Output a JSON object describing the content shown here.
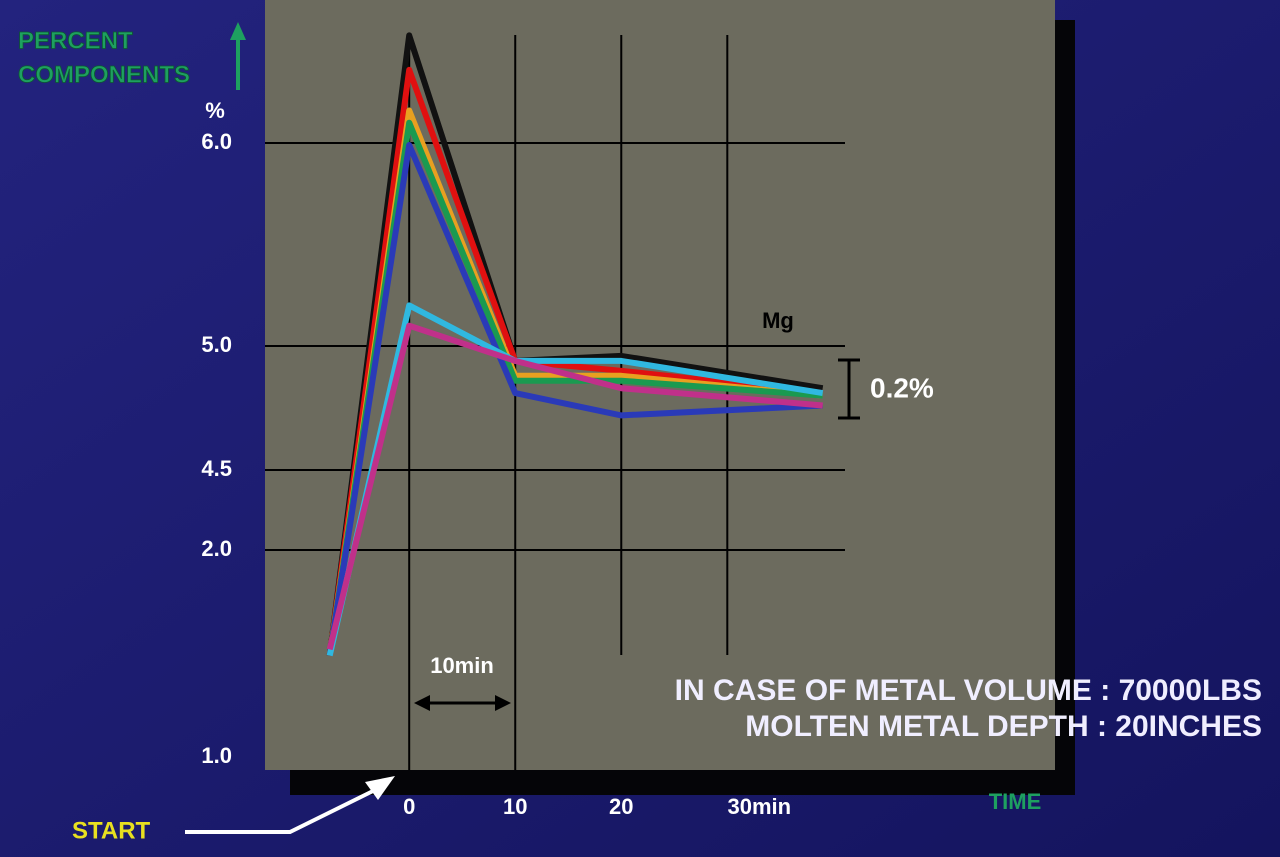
{
  "chart_data": {
    "type": "line",
    "ylabel_lines": [
      "PERCENT",
      "COMPONENTS"
    ],
    "y_unit": "%",
    "xlabel": "TIME",
    "x": [
      -7.5,
      0,
      10,
      20,
      39
    ],
    "xlim": [
      -13.6,
      41.1
    ],
    "xticks": [
      0,
      10,
      20,
      {
        "value": 30,
        "label": "30min"
      }
    ],
    "ylim": [
      1.0,
      6.7
    ],
    "yticks": [
      {
        "value": 1.0,
        "label": "1.0"
      },
      {
        "value": 2.0,
        "label": "2.0"
      },
      4.5,
      {
        "value": 5.0,
        "label": "5.0"
      },
      {
        "value": 6.0,
        "label": "6.0"
      }
    ],
    "grid": true,
    "series": [
      {
        "color": "#111111",
        "values": [
          1.49,
          6.53,
          4.94,
          4.96,
          4.83
        ]
      },
      {
        "color": "#e01010",
        "values": [
          1.49,
          6.36,
          4.94,
          4.9,
          4.81
        ]
      },
      {
        "color": "#e8a020",
        "values": [
          1.49,
          6.16,
          4.88,
          4.88,
          4.8
        ]
      },
      {
        "color": "#1a9a50",
        "values": [
          1.49,
          6.1,
          4.86,
          4.86,
          4.8
        ]
      },
      {
        "color": "#2a3ab8",
        "values": [
          1.49,
          5.99,
          4.81,
          4.72,
          4.76
        ]
      },
      {
        "color": "#30b8e0",
        "values": [
          1.49,
          5.2,
          4.94,
          4.94,
          4.81
        ]
      },
      {
        "color": "#c0308a",
        "values": [
          1.52,
          5.1,
          4.94,
          4.83,
          4.76
        ]
      }
    ],
    "annotations": [
      "Mg",
      "0.2%",
      "10min",
      "IN CASE OF METAL VOLUME : 70000LBS",
      "MOLTEN METAL DEPTH : 20INCHES",
      "START"
    ]
  }
}
